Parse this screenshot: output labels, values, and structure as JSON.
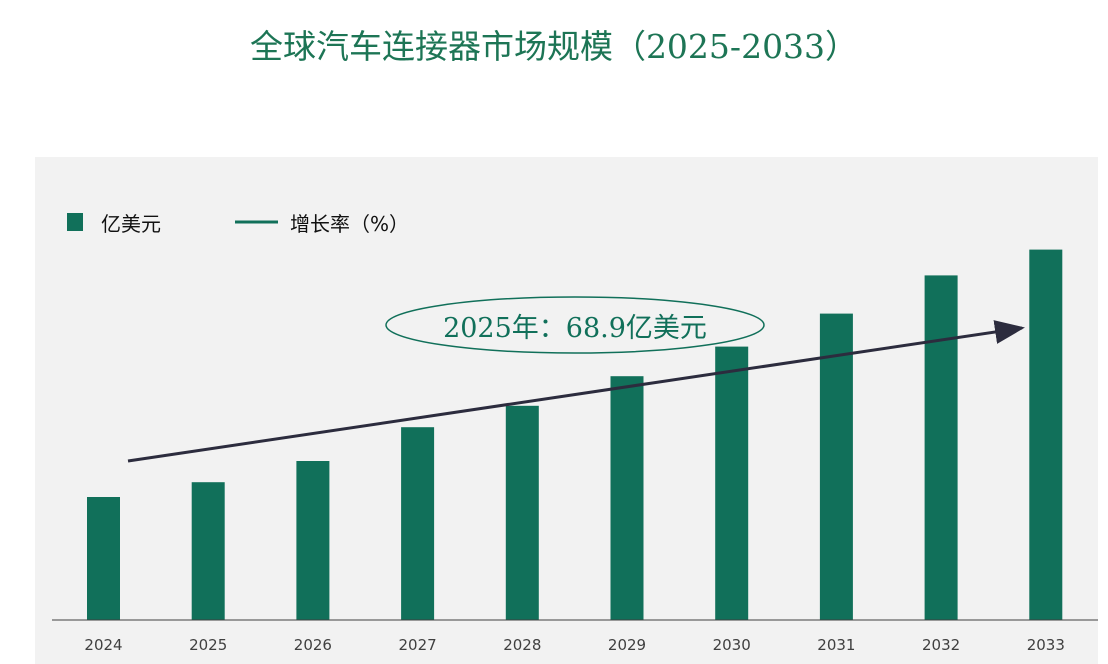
{
  "title": "全球汽车连接器市场规模（2025-2033）",
  "colors": {
    "bar": "#11705a",
    "title": "#1d7555",
    "panel": "#f2f2f2",
    "arrow": "#2c2c3e"
  },
  "legend": {
    "bar_label": "亿美元",
    "line_label": "增长率（%）"
  },
  "annotation": "2025年：68.9亿美元",
  "chart_data": {
    "type": "bar",
    "categories": [
      "2024",
      "2025",
      "2026",
      "2027",
      "2028",
      "2029",
      "2030",
      "2031",
      "2032",
      "2033"
    ],
    "series": [
      {
        "name": "亿美元",
        "values": [
          61.5,
          68.9,
          79.5,
          96.4,
          107.1,
          121.9,
          136.7,
          153.2,
          172.3,
          185.2
        ]
      }
    ],
    "ylim": [
      0,
      240
    ],
    "legend_position": "top-left",
    "grid": false
  }
}
